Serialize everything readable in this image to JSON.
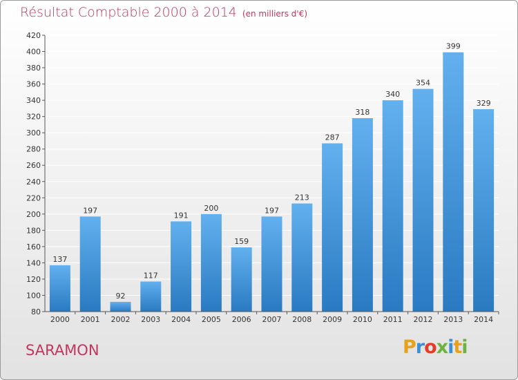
{
  "title": "Résultat Comptable 2000 à 2014",
  "subtitle": "(en milliers d'€)",
  "place": "SARAMON",
  "logo": {
    "text": "Proxiti",
    "colors": [
      "#e8a21a",
      "#3b8fd6",
      "#e23d28",
      "#6cb33f",
      "#3b8fd6",
      "#e8a21a",
      "#6cb33f"
    ]
  },
  "colors": {
    "title": "#c0365f",
    "bar_light": "#62b0ee",
    "bar_dark": "#2a7ac2",
    "grid": "#ffffff"
  },
  "chart_data": {
    "type": "bar",
    "categories": [
      "2000",
      "2001",
      "2002",
      "2003",
      "2004",
      "2005",
      "2006",
      "2007",
      "2008",
      "2009",
      "2010",
      "2011",
      "2012",
      "2013",
      "2014"
    ],
    "values": [
      137,
      197,
      92,
      117,
      191,
      200,
      159,
      197,
      213,
      287,
      318,
      340,
      354,
      399,
      329
    ],
    "ylim": [
      80,
      420
    ],
    "yticks": [
      80,
      100,
      120,
      140,
      160,
      180,
      200,
      220,
      240,
      260,
      280,
      300,
      320,
      340,
      360,
      380,
      400,
      420
    ],
    "grid": true,
    "legend": "none"
  }
}
